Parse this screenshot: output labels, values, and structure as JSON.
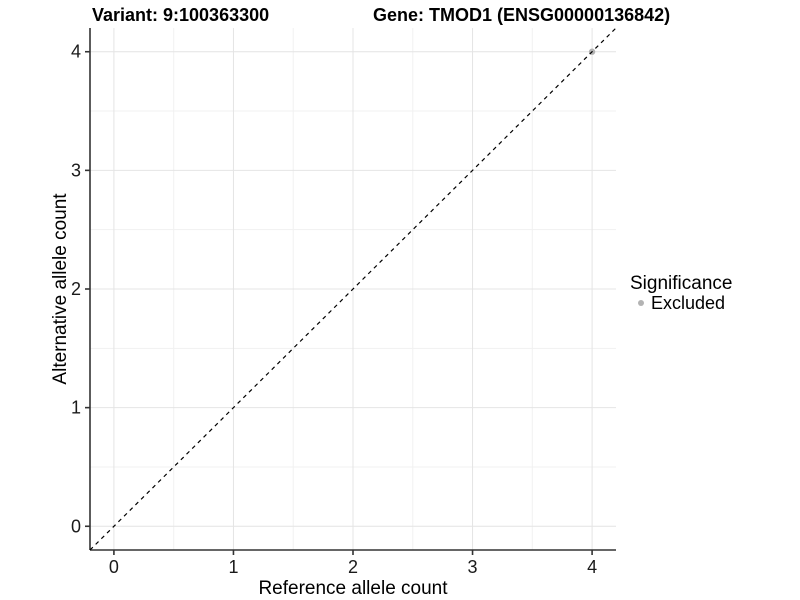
{
  "figure": {
    "background": "#ffffff"
  },
  "chart_data": {
    "type": "scatter",
    "title_left": "Variant: 9:100363300",
    "title_right": "Gene: TMOD1 (ENSG00000136842)",
    "xlabel": "Reference allele count",
    "ylabel": "Alternative allele count",
    "xlim": [
      -0.2,
      4.2
    ],
    "ylim": [
      -0.2,
      4.2
    ],
    "x_ticks": [
      0,
      1,
      2,
      3,
      4
    ],
    "y_ticks": [
      0,
      1,
      2,
      3,
      4
    ],
    "x_minor": [
      0.5,
      1.5,
      2.5,
      3.5
    ],
    "y_minor": [
      0.5,
      1.5,
      2.5,
      3.5
    ],
    "grid": {
      "major_color": "#e4e4e4",
      "minor_color": "#f1f1f1"
    },
    "axis_color": "#333333",
    "reference_line": {
      "slope": 1,
      "intercept": 0,
      "dash": "4 4",
      "color": "#000000",
      "width": 1.2
    },
    "series": [
      {
        "name": "Excluded",
        "color": "#b3b3b3",
        "points": [
          [
            4,
            4
          ]
        ]
      }
    ],
    "legend": {
      "title": "Significance",
      "position": "right",
      "items": [
        {
          "label": "Excluded",
          "color": "#b3b3b3"
        }
      ]
    }
  }
}
